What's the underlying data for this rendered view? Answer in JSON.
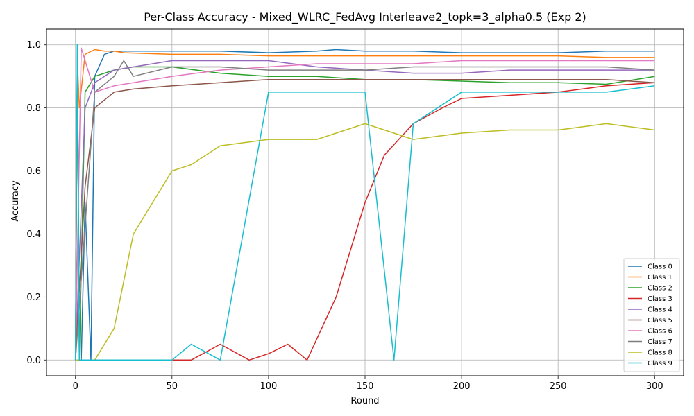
{
  "chart_data": {
    "type": "line",
    "title": "Per-Class Accuracy - Mixed_WLRC_FedAvg Interleave2_topk=3_alpha0.5 (Exp 2)",
    "xlabel": "Round",
    "ylabel": "Accuracy",
    "xlim": [
      -15,
      315
    ],
    "ylim": [
      -0.05,
      1.05
    ],
    "xticks": [
      0,
      50,
      100,
      150,
      200,
      250,
      300
    ],
    "yticks": [
      0.0,
      0.2,
      0.4,
      0.6,
      0.8,
      1.0
    ],
    "xtick_labels": [
      "0",
      "50",
      "100",
      "150",
      "200",
      "250",
      "300"
    ],
    "ytick_labels": [
      "0.0",
      "0.2",
      "0.4",
      "0.6",
      "0.8",
      "1.0"
    ],
    "grid": true,
    "legend_position": "bottom-right",
    "series": [
      {
        "name": "Class 0",
        "color": "#1f77b4",
        "x": [
          0,
          1,
          2,
          3,
          5,
          8,
          10,
          15,
          20,
          25,
          30,
          50,
          75,
          100,
          125,
          135,
          150,
          175,
          200,
          225,
          250,
          275,
          300
        ],
        "y": [
          0.0,
          1.0,
          0.0,
          0.0,
          0.5,
          0.0,
          0.9,
          0.97,
          0.98,
          0.98,
          0.98,
          0.98,
          0.98,
          0.975,
          0.98,
          0.985,
          0.98,
          0.98,
          0.975,
          0.975,
          0.975,
          0.98,
          0.98
        ]
      },
      {
        "name": "Class 1",
        "color": "#ff7f0e",
        "x": [
          0,
          1,
          2,
          5,
          10,
          15,
          20,
          25,
          50,
          75,
          100,
          125,
          150,
          175,
          200,
          225,
          250,
          275,
          300
        ],
        "y": [
          0.0,
          0.95,
          0.8,
          0.97,
          0.985,
          0.98,
          0.98,
          0.975,
          0.97,
          0.97,
          0.965,
          0.965,
          0.965,
          0.965,
          0.965,
          0.965,
          0.965,
          0.96,
          0.96
        ]
      },
      {
        "name": "Class 2",
        "color": "#2ca02c",
        "x": [
          0,
          1,
          2,
          5,
          10,
          20,
          30,
          50,
          75,
          100,
          125,
          150,
          175,
          200,
          225,
          250,
          275,
          300
        ],
        "y": [
          0.0,
          0.95,
          0.0,
          0.85,
          0.9,
          0.92,
          0.93,
          0.93,
          0.91,
          0.9,
          0.9,
          0.89,
          0.89,
          0.885,
          0.88,
          0.88,
          0.875,
          0.9
        ]
      },
      {
        "name": "Class 3",
        "color": "#d62728",
        "x": [
          0,
          10,
          20,
          30,
          50,
          60,
          75,
          90,
          100,
          110,
          120,
          135,
          140,
          150,
          160,
          175,
          190,
          200,
          225,
          250,
          275,
          300
        ],
        "y": [
          0.0,
          0.0,
          0.0,
          0.0,
          0.0,
          0.0,
          0.05,
          0.0,
          0.02,
          0.05,
          0.0,
          0.2,
          0.3,
          0.5,
          0.65,
          0.75,
          0.8,
          0.83,
          0.84,
          0.85,
          0.87,
          0.88
        ]
      },
      {
        "name": "Class 4",
        "color": "#9467bd",
        "x": [
          0,
          5,
          10,
          20,
          30,
          50,
          75,
          100,
          125,
          150,
          175,
          200,
          225,
          250,
          275,
          300
        ],
        "y": [
          0.0,
          0.8,
          0.88,
          0.92,
          0.93,
          0.95,
          0.95,
          0.95,
          0.93,
          0.92,
          0.91,
          0.91,
          0.92,
          0.92,
          0.92,
          0.92
        ]
      },
      {
        "name": "Class 5",
        "color": "#8c564b",
        "x": [
          0,
          5,
          10,
          20,
          30,
          50,
          75,
          100,
          125,
          150,
          175,
          200,
          225,
          250,
          275,
          300
        ],
        "y": [
          0.0,
          0.55,
          0.8,
          0.85,
          0.86,
          0.87,
          0.88,
          0.89,
          0.89,
          0.89,
          0.89,
          0.89,
          0.89,
          0.89,
          0.89,
          0.88
        ]
      },
      {
        "name": "Class 6",
        "color": "#e377c2",
        "x": [
          0,
          3,
          10,
          20,
          30,
          50,
          75,
          100,
          125,
          150,
          175,
          200,
          225,
          250,
          275,
          300
        ],
        "y": [
          0.0,
          0.99,
          0.85,
          0.87,
          0.88,
          0.9,
          0.92,
          0.93,
          0.94,
          0.94,
          0.94,
          0.95,
          0.95,
          0.95,
          0.95,
          0.95
        ]
      },
      {
        "name": "Class 7",
        "color": "#7f7f7f",
        "x": [
          0,
          10,
          20,
          25,
          30,
          50,
          75,
          100,
          125,
          150,
          175,
          200,
          225,
          250,
          275,
          300
        ],
        "y": [
          0.0,
          0.85,
          0.9,
          0.95,
          0.9,
          0.93,
          0.93,
          0.92,
          0.92,
          0.92,
          0.93,
          0.93,
          0.93,
          0.93,
          0.93,
          0.92
        ]
      },
      {
        "name": "Class 8",
        "color": "#bcbd22",
        "x": [
          0,
          10,
          20,
          30,
          40,
          50,
          60,
          75,
          100,
          125,
          150,
          175,
          200,
          225,
          250,
          275,
          300
        ],
        "y": [
          0.0,
          0.0,
          0.1,
          0.4,
          0.5,
          0.6,
          0.62,
          0.68,
          0.7,
          0.7,
          0.75,
          0.7,
          0.72,
          0.73,
          0.73,
          0.75,
          0.73
        ]
      },
      {
        "name": "Class 9",
        "color": "#17becf",
        "x": [
          0,
          1,
          2,
          10,
          20,
          30,
          40,
          50,
          60,
          75,
          100,
          125,
          150,
          165,
          175,
          200,
          225,
          250,
          275,
          300
        ],
        "y": [
          0.0,
          1.0,
          0.0,
          0.0,
          0.0,
          0.0,
          0.0,
          0.0,
          0.05,
          0.0,
          0.85,
          0.85,
          0.85,
          0.0,
          0.75,
          0.85,
          0.85,
          0.85,
          0.85,
          0.87
        ]
      }
    ]
  }
}
